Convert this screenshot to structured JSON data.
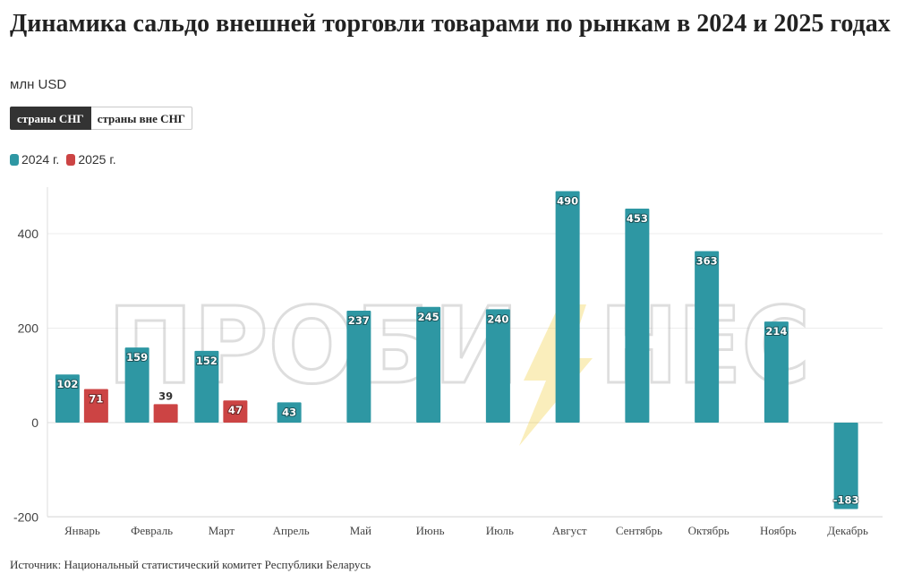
{
  "title": "Динамика сальдо внешней торговли товарами по рынкам в 2024 и 2025 годах",
  "subtitle": "млн USD",
  "tabs": [
    {
      "label": "страны СНГ",
      "active": true
    },
    {
      "label": "страны вне СНГ",
      "active": false
    }
  ],
  "watermark": {
    "left": "ПРОБИ",
    "right": "НЕС"
  },
  "source": "Источник: Национальный статистический комитет Республики Беларусь",
  "colors": {
    "series_2024": "#2e97a3",
    "series_2025": "#cc4444"
  },
  "chart_data": {
    "type": "bar",
    "categories": [
      "Январь",
      "Февраль",
      "Март",
      "Апрель",
      "Май",
      "Июнь",
      "Июль",
      "Август",
      "Сентябрь",
      "Октябрь",
      "Ноябрь",
      "Декабрь"
    ],
    "series": [
      {
        "name": "2024 г.",
        "color": "#2e97a3",
        "values": [
          102,
          159,
          152,
          43,
          237,
          245,
          240,
          490,
          453,
          363,
          214,
          -183
        ]
      },
      {
        "name": "2025 г.",
        "color": "#cc4444",
        "values": [
          71,
          39,
          47,
          null,
          null,
          null,
          null,
          null,
          null,
          null,
          null,
          null
        ]
      }
    ],
    "ylim": [
      -200,
      500
    ],
    "yticks": [
      400,
      200,
      0,
      -200
    ],
    "grid": true,
    "legend": "top-left",
    "xlabel": "",
    "ylabel": ""
  }
}
